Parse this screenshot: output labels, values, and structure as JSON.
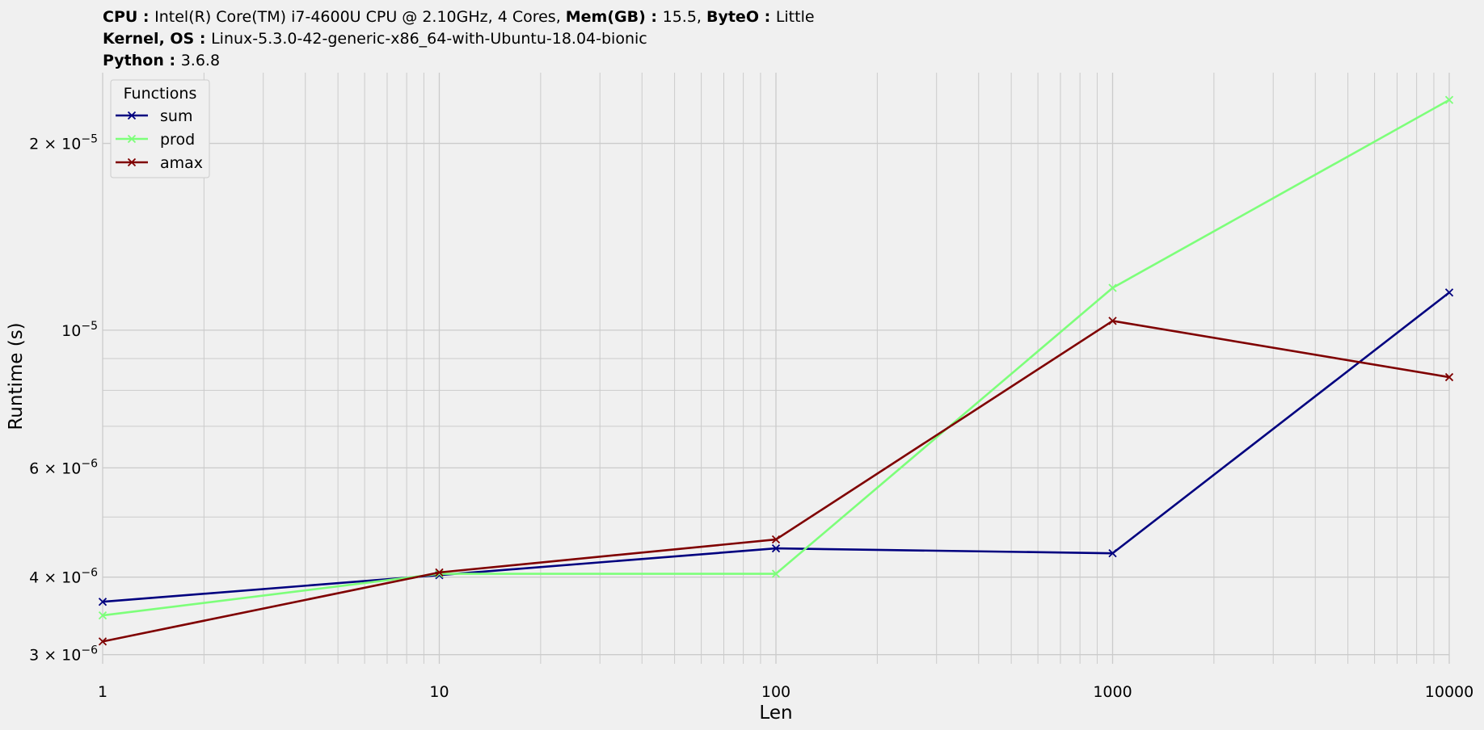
{
  "header": {
    "cpu_label": "CPU",
    "cpu_value": "Intel(R) Core(TM) i7-4600U CPU @ 2.10GHz, 4 Cores,",
    "mem_label": "Mem(GB)",
    "mem_value": "15.5,",
    "byteo_label": "ByteO",
    "byteo_value": "Little",
    "kernel_label": "Kernel, OS",
    "kernel_value": "Linux-5.3.0-42-generic-x86_64-with-Ubuntu-18.04-bionic",
    "python_label": "Python",
    "python_value": "3.6.8"
  },
  "chart_data": {
    "type": "line",
    "xlabel": "Len",
    "ylabel": "Runtime (s)",
    "x_scale": "log",
    "y_scale": "log",
    "xlim": [
      1,
      10000
    ],
    "ylim": [
      2.9e-06,
      2.6e-05
    ],
    "x_ticks": [
      {
        "value": 1,
        "label": "1"
      },
      {
        "value": 10,
        "label": "10"
      },
      {
        "value": 100,
        "label": "100"
      },
      {
        "value": 1000,
        "label": "1000"
      },
      {
        "value": 10000,
        "label": "10000"
      }
    ],
    "y_ticks": [
      {
        "value": 3e-06,
        "mant": "3",
        "exp": "−6"
      },
      {
        "value": 4e-06,
        "mant": "4",
        "exp": "−6"
      },
      {
        "value": 6e-06,
        "mant": "6",
        "exp": "−6"
      },
      {
        "value": 1e-05,
        "mant": "",
        "exp": "−5"
      },
      {
        "value": 2e-05,
        "mant": "2",
        "exp": "−5"
      }
    ],
    "y_tick_times": "×",
    "y_minor_grid": [
      5e-06,
      7e-06,
      8e-06,
      9e-06
    ],
    "grid": true,
    "legend": {
      "title": "Functions",
      "position": "top-left"
    },
    "x": [
      1,
      10,
      100,
      1000,
      10000
    ],
    "series": [
      {
        "name": "sum",
        "color": "#00007f",
        "marker": "x",
        "values": [
          3.65e-06,
          4.03e-06,
          4.45e-06,
          4.37e-06,
          1.15e-05
        ]
      },
      {
        "name": "prod",
        "color": "#7dff7a",
        "marker": "x",
        "values": [
          3.47e-06,
          4.05e-06,
          4.05e-06,
          1.17e-05,
          2.35e-05
        ]
      },
      {
        "name": "amax",
        "color": "#7f0000",
        "marker": "x",
        "values": [
          3.15e-06,
          4.07e-06,
          4.6e-06,
          1.035e-05,
          8.4e-06
        ]
      }
    ]
  }
}
